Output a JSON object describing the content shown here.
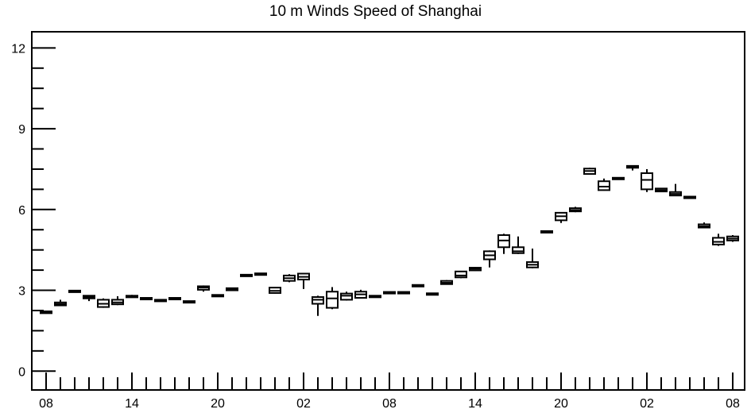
{
  "chart_data": {
    "type": "boxplot",
    "title": "10 m Winds Speed of Shanghai",
    "xlabel": "",
    "ylabel": "",
    "ylim": [
      -0.7,
      12.6
    ],
    "y_ticks": [
      0,
      3,
      6,
      9,
      12
    ],
    "x_tick_labels": [
      "08",
      "14",
      "20",
      "02",
      "08",
      "14",
      "20",
      "02",
      "08"
    ],
    "legend": "none",
    "grid": false,
    "boxes": [
      {
        "min": 2.13,
        "q1": 2.15,
        "median": 2.18,
        "q3": 2.22,
        "max": 2.24
      },
      {
        "min": 2.43,
        "q1": 2.44,
        "median": 2.49,
        "q3": 2.55,
        "max": 2.65
      },
      {
        "min": 2.93,
        "q1": 2.94,
        "median": 2.97,
        "q3": 2.99,
        "max": 3.01
      },
      {
        "min": 2.6,
        "q1": 2.7,
        "median": 2.75,
        "q3": 2.8,
        "max": 2.82
      },
      {
        "min": 2.35,
        "q1": 2.38,
        "median": 2.5,
        "q3": 2.65,
        "max": 2.7
      },
      {
        "min": 2.45,
        "q1": 2.48,
        "median": 2.55,
        "q3": 2.65,
        "max": 2.78
      },
      {
        "min": 2.72,
        "q1": 2.74,
        "median": 2.77,
        "q3": 2.8,
        "max": 2.83
      },
      {
        "min": 2.66,
        "q1": 2.68,
        "median": 2.7,
        "q3": 2.72,
        "max": 2.74
      },
      {
        "min": 2.6,
        "q1": 2.61,
        "median": 2.63,
        "q3": 2.65,
        "max": 2.67
      },
      {
        "min": 2.67,
        "q1": 2.68,
        "median": 2.7,
        "q3": 2.72,
        "max": 2.74
      },
      {
        "min": 2.55,
        "q1": 2.56,
        "median": 2.58,
        "q3": 2.6,
        "max": 2.62
      },
      {
        "min": 2.95,
        "q1": 3.02,
        "median": 3.1,
        "q3": 3.15,
        "max": 3.18
      },
      {
        "min": 2.78,
        "q1": 2.79,
        "median": 2.81,
        "q3": 2.83,
        "max": 2.84
      },
      {
        "min": 2.98,
        "q1": 3.0,
        "median": 3.04,
        "q3": 3.08,
        "max": 3.1
      },
      {
        "min": 3.52,
        "q1": 3.53,
        "median": 3.55,
        "q3": 3.58,
        "max": 3.6
      },
      {
        "min": 3.55,
        "q1": 3.57,
        "median": 3.6,
        "q3": 3.63,
        "max": 3.65
      },
      {
        "min": 2.88,
        "q1": 2.9,
        "median": 2.98,
        "q3": 3.1,
        "max": 3.12
      },
      {
        "min": 3.3,
        "q1": 3.35,
        "median": 3.45,
        "q3": 3.55,
        "max": 3.6
      },
      {
        "min": 3.05,
        "q1": 3.4,
        "median": 3.5,
        "q3": 3.62,
        "max": 3.65
      },
      {
        "min": 2.05,
        "q1": 2.5,
        "median": 2.65,
        "q3": 2.75,
        "max": 2.8
      },
      {
        "min": 2.3,
        "q1": 2.35,
        "median": 2.7,
        "q3": 2.95,
        "max": 3.12
      },
      {
        "min": 2.62,
        "q1": 2.65,
        "median": 2.8,
        "q3": 2.88,
        "max": 2.95
      },
      {
        "min": 2.7,
        "q1": 2.72,
        "median": 2.85,
        "q3": 2.95,
        "max": 3.02
      },
      {
        "min": 2.74,
        "q1": 2.75,
        "median": 2.78,
        "q3": 2.8,
        "max": 2.82
      },
      {
        "min": 2.88,
        "q1": 2.9,
        "median": 2.92,
        "q3": 2.94,
        "max": 2.96
      },
      {
        "min": 2.91,
        "q1": 2.92,
        "median": 2.93,
        "q3": 2.94,
        "max": 2.95
      },
      {
        "min": 3.17,
        "q1": 3.18,
        "median": 3.19,
        "q3": 3.2,
        "max": 3.21
      },
      {
        "min": 2.84,
        "q1": 2.85,
        "median": 2.87,
        "q3": 2.89,
        "max": 2.9
      },
      {
        "min": 3.22,
        "q1": 3.23,
        "median": 3.28,
        "q3": 3.35,
        "max": 3.38
      },
      {
        "min": 3.45,
        "q1": 3.48,
        "median": 3.55,
        "q3": 3.7,
        "max": 3.72
      },
      {
        "min": 3.72,
        "q1": 3.74,
        "median": 3.8,
        "q3": 3.84,
        "max": 3.86
      },
      {
        "min": 3.85,
        "q1": 4.15,
        "median": 4.3,
        "q3": 4.45,
        "max": 4.48
      },
      {
        "min": 4.35,
        "q1": 4.6,
        "median": 4.85,
        "q3": 5.05,
        "max": 5.1
      },
      {
        "min": 4.35,
        "q1": 4.38,
        "median": 4.45,
        "q3": 4.6,
        "max": 5.0
      },
      {
        "min": 3.82,
        "q1": 3.85,
        "median": 3.95,
        "q3": 4.05,
        "max": 4.55
      },
      {
        "min": 5.15,
        "q1": 5.16,
        "median": 5.18,
        "q3": 5.2,
        "max": 5.22
      },
      {
        "min": 5.5,
        "q1": 5.6,
        "median": 5.75,
        "q3": 5.88,
        "max": 5.9
      },
      {
        "min": 5.9,
        "q1": 5.93,
        "median": 5.98,
        "q3": 6.05,
        "max": 6.1
      },
      {
        "min": 7.3,
        "q1": 7.32,
        "median": 7.43,
        "q3": 7.52,
        "max": 7.55
      },
      {
        "min": 6.7,
        "q1": 6.72,
        "median": 6.85,
        "q3": 7.05,
        "max": 7.15
      },
      {
        "min": 7.13,
        "q1": 7.14,
        "median": 7.16,
        "q3": 7.18,
        "max": 7.19
      },
      {
        "min": 7.45,
        "q1": 7.55,
        "median": 7.6,
        "q3": 7.62,
        "max": 7.64
      },
      {
        "min": 6.65,
        "q1": 6.75,
        "median": 7.1,
        "q3": 7.35,
        "max": 7.5
      },
      {
        "min": 6.65,
        "q1": 6.67,
        "median": 6.72,
        "q3": 6.78,
        "max": 6.8
      },
      {
        "min": 6.5,
        "q1": 6.52,
        "median": 6.58,
        "q3": 6.65,
        "max": 6.95
      },
      {
        "min": 6.4,
        "q1": 6.42,
        "median": 6.45,
        "q3": 6.48,
        "max": 6.5
      },
      {
        "min": 5.32,
        "q1": 5.33,
        "median": 5.38,
        "q3": 5.45,
        "max": 5.52
      },
      {
        "min": 4.65,
        "q1": 4.7,
        "median": 4.8,
        "q3": 4.95,
        "max": 5.1
      },
      {
        "min": 4.8,
        "q1": 4.85,
        "median": 4.92,
        "q3": 5.0,
        "max": 5.05
      }
    ]
  }
}
